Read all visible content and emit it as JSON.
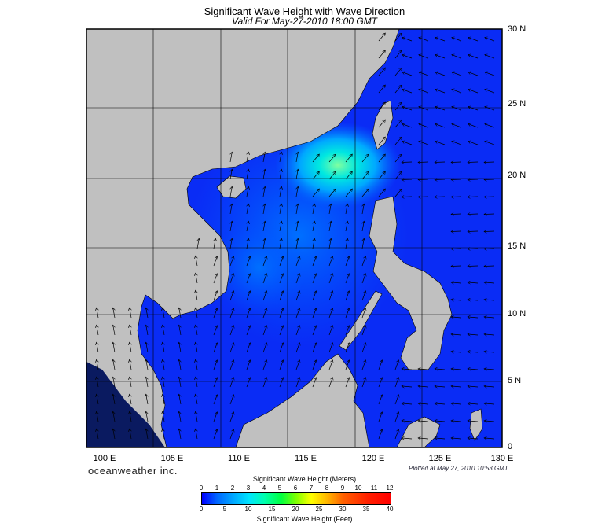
{
  "title": "Significant Wave Height with Wave Direction",
  "subtitle": "Valid For May-27-2010 18:00 GMT",
  "lat_labels": [
    "30 N",
    "25 N",
    "20 N",
    "15 N",
    "10 N",
    "5 N",
    "0"
  ],
  "lon_labels": [
    "100 E",
    "105 E",
    "110 E",
    "115 E",
    "120 E",
    "125 E",
    "130 E"
  ],
  "brand": "oceanweather inc.",
  "plotted": "Plotted at May 27, 2010 10:53 GMT",
  "legend": {
    "meters_label": "Significant Wave Height (Meters)",
    "feet_label": "Significant Wave Height (Feet)",
    "meters_ticks": [
      "0",
      "1",
      "2",
      "3",
      "4",
      "5",
      "6",
      "7",
      "8",
      "9",
      "10",
      "11",
      "12"
    ],
    "feet_ticks": [
      "0",
      "5",
      "10",
      "15",
      "20",
      "25",
      "30",
      "35",
      "40"
    ]
  },
  "colors": {
    "land": "#c0c0c0",
    "sea_low": "#0000ff",
    "sea_high": "#00ffb0"
  }
}
